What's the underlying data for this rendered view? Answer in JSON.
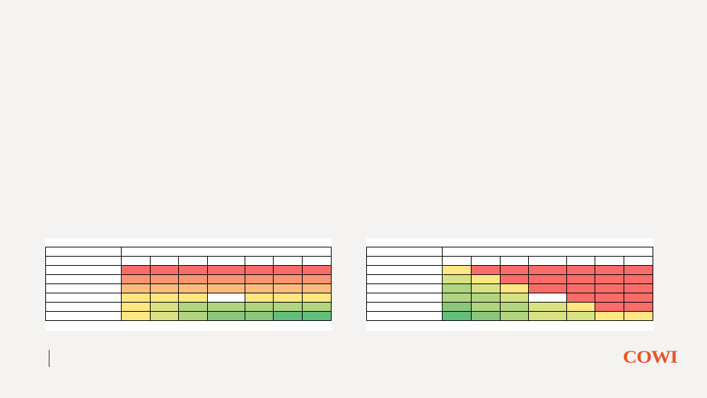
{
  "colors": {
    "background": "#f4f3f1",
    "brand": "#e8542a",
    "scale": {
      "r": "#f86c6a",
      "o": "#f99574",
      "p": "#fcbd7c",
      "y": "#fee683",
      "l": "#d9e283",
      "g": "#b0d480",
      "m": "#8ac77d",
      "d": "#63be7b",
      "w": "#ffffff"
    }
  },
  "logo": {
    "text": "COWI"
  },
  "table_left": {
    "rows": [
      [
        "r",
        "r",
        "r",
        "r",
        "r",
        "r",
        "r"
      ],
      [
        "o",
        "o",
        "o",
        "o",
        "o",
        "o",
        "o"
      ],
      [
        "p",
        "p",
        "p",
        "p",
        "p",
        "p",
        "p"
      ],
      [
        "y",
        "y",
        "y",
        "w",
        "y",
        "y",
        "y"
      ],
      [
        "y",
        "l",
        "g",
        "g",
        "g",
        "g",
        "g"
      ],
      [
        "y",
        "l",
        "g",
        "m",
        "m",
        "d",
        "d"
      ]
    ]
  },
  "table_right": {
    "rows": [
      [
        "y",
        "r",
        "r",
        "r",
        "r",
        "r",
        "r"
      ],
      [
        "l",
        "y",
        "r",
        "r",
        "r",
        "r",
        "r"
      ],
      [
        "g",
        "l",
        "y",
        "r",
        "r",
        "r",
        "r"
      ],
      [
        "g",
        "g",
        "l",
        "w",
        "r",
        "r",
        "r"
      ],
      [
        "m",
        "g",
        "g",
        "l",
        "y",
        "r",
        "r"
      ],
      [
        "d",
        "m",
        "g",
        "l",
        "l",
        "y",
        "y"
      ]
    ]
  }
}
